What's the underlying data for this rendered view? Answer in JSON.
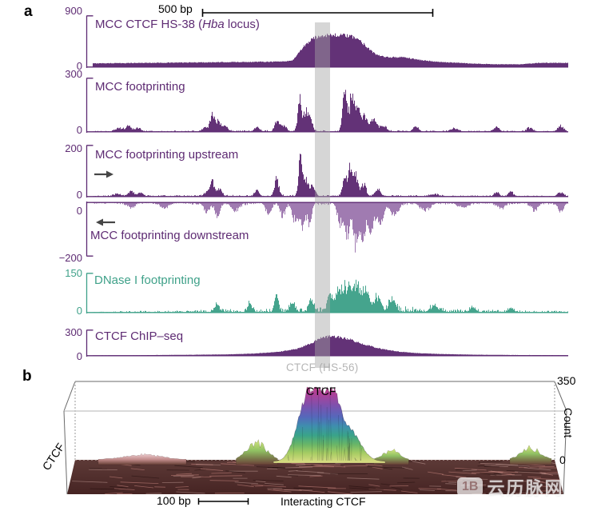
{
  "panel_a": {
    "label": "a",
    "scale_bar_label": "500 bp",
    "highlight_label": "CTCF (HS-56)",
    "tracks": [
      {
        "label_prefix": "MCC CTCF HS-38 (",
        "label_italic": "Hba",
        "label_suffix": " locus)",
        "ytop": "900",
        "ybottom": "0"
      },
      {
        "label": "MCC footprinting",
        "ytop": "300",
        "ybottom": "0"
      },
      {
        "label": "MCC footprinting upstream",
        "ytop": "200",
        "ybottom": "0"
      },
      {
        "label": "MCC footprinting downstream",
        "ytop": "0",
        "ybottom": "−200"
      },
      {
        "label": "DNase I footprinting",
        "ytop": "150",
        "ybottom": "0"
      },
      {
        "label": "CTCF ChIP–seq",
        "ytop": "300",
        "ybottom": "0"
      }
    ]
  },
  "panel_b": {
    "label": "b",
    "peak_label": "CTCF",
    "y_axis_label": "CTCF",
    "count_axis_label": "Count",
    "count_max": "350",
    "count_min": "0",
    "scale_bar_label": "100 bp",
    "x_axis_label": "Interacting CTCF"
  },
  "watermark": {
    "logo": "1B",
    "text": "云历脉网"
  },
  "colors": {
    "purple": "#5e2b73",
    "light_purple": "#9d77ae",
    "teal": "#3fa189",
    "band_gray": "#a5a5a5",
    "gray_text": "#b5b5b5"
  },
  "chart_data": {
    "tracks": [
      {
        "type": "area",
        "title": "MCC CTCF HS-38 (Hba locus)",
        "ylim": [
          0,
          900
        ],
        "yticks": [
          900,
          0
        ],
        "color": "#5e2b73",
        "style": "dense",
        "envelope": [
          [
            0,
            0.08
          ],
          [
            0.1,
            0.09
          ],
          [
            0.22,
            0.1
          ],
          [
            0.32,
            0.11
          ],
          [
            0.4,
            0.12
          ],
          [
            0.42,
            0.14
          ],
          [
            0.445,
            0.45
          ],
          [
            0.465,
            0.62
          ],
          [
            0.49,
            0.68
          ],
          [
            0.53,
            0.67
          ],
          [
            0.555,
            0.62
          ],
          [
            0.575,
            0.45
          ],
          [
            0.595,
            0.27
          ],
          [
            0.615,
            0.21
          ],
          [
            0.655,
            0.21
          ],
          [
            0.69,
            0.15
          ],
          [
            0.73,
            0.11
          ],
          [
            0.79,
            0.08
          ],
          [
            0.85,
            0.06
          ],
          [
            0.9,
            0.06
          ],
          [
            0.94,
            0.09
          ],
          [
            1,
            0.09
          ]
        ]
      },
      {
        "type": "bar",
        "title": "MCC footprinting",
        "ylim": [
          0,
          300
        ],
        "yticks": [
          300,
          0
        ],
        "color": "#5e2b73",
        "style": "spiky",
        "envelope": [
          [
            0,
            0.02
          ],
          [
            0.4,
            0.035
          ],
          [
            0.65,
            0.03
          ],
          [
            1,
            0.02
          ]
        ],
        "spikes": [
          [
            0.055,
            0.08,
            0.008
          ],
          [
            0.075,
            0.12,
            0.006
          ],
          [
            0.095,
            0.09,
            0.006
          ],
          [
            0.238,
            0.12,
            0.006
          ],
          [
            0.252,
            0.37,
            0.0045
          ],
          [
            0.263,
            0.22,
            0.005
          ],
          [
            0.278,
            0.12,
            0.006
          ],
          [
            0.345,
            0.1,
            0.005
          ],
          [
            0.387,
            0.22,
            0.0045
          ],
          [
            0.4,
            0.13,
            0.006
          ],
          [
            0.435,
            0.75,
            0.0038
          ],
          [
            0.447,
            0.42,
            0.0042
          ],
          [
            0.457,
            0.28,
            0.005
          ],
          [
            0.53,
            0.95,
            0.0042
          ],
          [
            0.545,
            0.85,
            0.0048
          ],
          [
            0.558,
            0.55,
            0.0045
          ],
          [
            0.572,
            0.36,
            0.005
          ],
          [
            0.59,
            0.27,
            0.006
          ],
          [
            0.61,
            0.13,
            0.008
          ],
          [
            0.68,
            0.1,
            0.006
          ],
          [
            0.76,
            0.06,
            0.008
          ],
          [
            0.85,
            0.1,
            0.006
          ],
          [
            0.92,
            0.1,
            0.006
          ],
          [
            0.985,
            0.13,
            0.006
          ]
        ]
      },
      {
        "type": "bar",
        "title": "MCC footprinting upstream",
        "ylim": [
          0,
          200
        ],
        "yticks": [
          200,
          0
        ],
        "color": "#5e2b73",
        "style": "spiky",
        "arrow": "right",
        "envelope": [
          [
            0,
            0.025
          ],
          [
            0.4,
            0.04
          ],
          [
            0.7,
            0.03
          ],
          [
            1,
            0.02
          ]
        ],
        "spikes": [
          [
            0.05,
            0.06,
            0.008
          ],
          [
            0.08,
            0.11,
            0.006
          ],
          [
            0.1,
            0.08,
            0.006
          ],
          [
            0.24,
            0.1,
            0.006
          ],
          [
            0.252,
            0.33,
            0.0045
          ],
          [
            0.266,
            0.18,
            0.005
          ],
          [
            0.345,
            0.12,
            0.005
          ],
          [
            0.387,
            0.42,
            0.0045
          ],
          [
            0.437,
            0.95,
            0.0038
          ],
          [
            0.449,
            0.38,
            0.0045
          ],
          [
            0.462,
            0.24,
            0.005
          ],
          [
            0.53,
            0.4,
            0.0045
          ],
          [
            0.542,
            0.68,
            0.0045
          ],
          [
            0.554,
            0.46,
            0.0045
          ],
          [
            0.57,
            0.3,
            0.005
          ],
          [
            0.6,
            0.16,
            0.006
          ],
          [
            0.72,
            0.06,
            0.008
          ],
          [
            0.85,
            0.1,
            0.005
          ],
          [
            0.88,
            0.12,
            0.005
          ],
          [
            0.985,
            0.1,
            0.006
          ]
        ]
      },
      {
        "type": "bar",
        "title": "MCC footprinting downstream",
        "ylim": [
          -200,
          0
        ],
        "yticks": [
          0,
          -200
        ],
        "color": "#5e2b73",
        "fill": "#9d77ae",
        "style": "spiky",
        "direction": "down",
        "arrow": "left",
        "envelope": [
          [
            0,
            0.03
          ],
          [
            0.3,
            0.05
          ],
          [
            0.6,
            0.05
          ],
          [
            1,
            0.04
          ]
        ],
        "spikes": [
          [
            0.08,
            0.1,
            0.008
          ],
          [
            0.15,
            0.12,
            0.008
          ],
          [
            0.24,
            0.22,
            0.006
          ],
          [
            0.262,
            0.3,
            0.005
          ],
          [
            0.3,
            0.16,
            0.008
          ],
          [
            0.37,
            0.22,
            0.006
          ],
          [
            0.4,
            0.3,
            0.005
          ],
          [
            0.425,
            0.42,
            0.005
          ],
          [
            0.44,
            0.55,
            0.005
          ],
          [
            0.455,
            0.45,
            0.005
          ],
          [
            0.52,
            0.5,
            0.005
          ],
          [
            0.535,
            0.75,
            0.005
          ],
          [
            0.553,
            0.95,
            0.005
          ],
          [
            0.568,
            0.85,
            0.005
          ],
          [
            0.585,
            0.62,
            0.006
          ],
          [
            0.605,
            0.42,
            0.007
          ],
          [
            0.635,
            0.26,
            0.008
          ],
          [
            0.7,
            0.16,
            0.01
          ],
          [
            0.78,
            0.1,
            0.01
          ],
          [
            0.86,
            0.12,
            0.008
          ],
          [
            0.93,
            0.15,
            0.007
          ],
          [
            0.985,
            0.2,
            0.006
          ]
        ]
      },
      {
        "type": "bar",
        "title": "DNase I footprinting",
        "ylim": [
          0,
          150
        ],
        "yticks": [
          150,
          0
        ],
        "color": "#3fa189",
        "style": "spiky",
        "envelope": [
          [
            0,
            0.03
          ],
          [
            0.1,
            0.05
          ],
          [
            0.2,
            0.07
          ],
          [
            0.3,
            0.1
          ],
          [
            0.4,
            0.13
          ],
          [
            0.47,
            0.16
          ],
          [
            0.55,
            0.26
          ],
          [
            0.62,
            0.2
          ],
          [
            0.7,
            0.13
          ],
          [
            0.8,
            0.09
          ],
          [
            0.9,
            0.06
          ],
          [
            1,
            0.05
          ]
        ],
        "spikes": [
          [
            0.26,
            0.2,
            0.005
          ],
          [
            0.33,
            0.25,
            0.0045
          ],
          [
            0.387,
            0.45,
            0.0038
          ],
          [
            0.42,
            0.25,
            0.005
          ],
          [
            0.46,
            0.3,
            0.005
          ],
          [
            0.5,
            0.5,
            0.005
          ],
          [
            0.515,
            0.65,
            0.0045
          ],
          [
            0.528,
            0.75,
            0.0045
          ],
          [
            0.54,
            0.6,
            0.005
          ],
          [
            0.553,
            0.85,
            0.0045
          ],
          [
            0.566,
            0.7,
            0.005
          ],
          [
            0.578,
            0.5,
            0.005
          ],
          [
            0.6,
            0.45,
            0.006
          ],
          [
            0.63,
            0.3,
            0.007
          ],
          [
            0.72,
            0.16,
            0.008
          ],
          [
            0.8,
            0.12,
            0.006
          ],
          [
            0.88,
            0.1,
            0.006
          ]
        ]
      },
      {
        "type": "area",
        "title": "CTCF ChIP–seq",
        "ylim": [
          0,
          300
        ],
        "yticks": [
          300,
          0
        ],
        "color": "#5e2b73",
        "style": "dense",
        "envelope": [
          [
            0,
            0.02
          ],
          [
            0.1,
            0.03
          ],
          [
            0.2,
            0.045
          ],
          [
            0.28,
            0.06
          ],
          [
            0.34,
            0.1
          ],
          [
            0.39,
            0.17
          ],
          [
            0.43,
            0.3
          ],
          [
            0.46,
            0.55
          ],
          [
            0.478,
            0.75
          ],
          [
            0.497,
            0.84
          ],
          [
            0.52,
            0.8
          ],
          [
            0.545,
            0.68
          ],
          [
            0.57,
            0.5
          ],
          [
            0.6,
            0.33
          ],
          [
            0.64,
            0.19
          ],
          [
            0.68,
            0.12
          ],
          [
            0.73,
            0.08
          ],
          [
            0.8,
            0.05
          ],
          [
            0.9,
            0.035
          ],
          [
            1,
            0.03
          ]
        ]
      }
    ],
    "surface": {
      "type": "surface",
      "peak_label": "CTCF",
      "zlabel": "Count",
      "zlim": [
        0,
        350
      ],
      "zticks": [
        350,
        0
      ],
      "xlabel": "Interacting CTCF",
      "ylabel": "CTCF",
      "scale_bar": "100 bp",
      "peak": {
        "x_f": 0.517,
        "height_counts": 315,
        "summits": [
          [
            -13,
            11,
            1.0
          ],
          [
            9,
            10,
            0.96
          ],
          [
            32,
            14,
            0.45
          ],
          [
            -30,
            10,
            0.33
          ]
        ]
      },
      "bumps": [
        [
          0.14,
          26,
          55,
          "pink"
        ],
        [
          0.379,
          90,
          26,
          "green"
        ],
        [
          0.659,
          48,
          22,
          "green"
        ],
        [
          0.95,
          62,
          26,
          "green"
        ]
      ]
    }
  }
}
